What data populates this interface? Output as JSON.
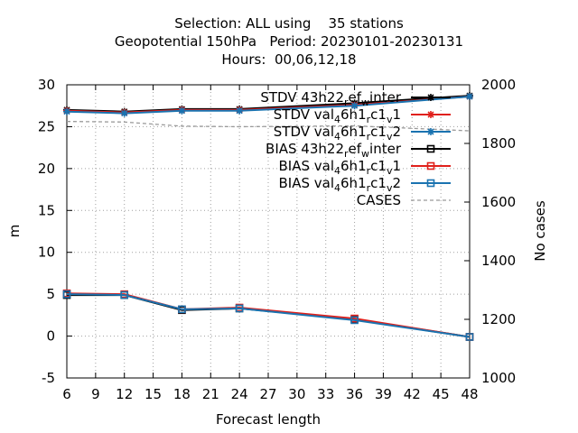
{
  "chart_data": {
    "type": "line",
    "title_lines": [
      "Selection: ALL using    35 stations",
      "Geopotential 150hPa   Period: 20230101-20230131",
      "Hours:  00,06,12,18"
    ],
    "xlabel": "Forecast length",
    "ylabel": "m",
    "y2label": "No cases",
    "xlim": [
      6,
      48
    ],
    "ylim": [
      -5,
      30
    ],
    "y2lim": [
      1000,
      2000
    ],
    "xticks": [
      6,
      9,
      12,
      15,
      18,
      21,
      24,
      27,
      30,
      33,
      36,
      39,
      42,
      45,
      48
    ],
    "yticks": [
      -5,
      0,
      5,
      10,
      15,
      20,
      25,
      30
    ],
    "y2ticks": [
      1000,
      1200,
      1400,
      1600,
      1800,
      2000
    ],
    "grid": true,
    "legend_position": "top-right",
    "x": [
      6,
      12,
      18,
      24,
      36,
      48
    ],
    "series": [
      {
        "name": "STDV 43h22_ref_winter",
        "legend_main": "STDV 43h22",
        "legend_parts": [
          [
            "r",
            "ef"
          ],
          [
            "w",
            "inter"
          ]
        ],
        "color": "#000000",
        "marker": "star",
        "axis": "y",
        "values": [
          27.0,
          26.8,
          27.1,
          27.1,
          27.8,
          28.7
        ]
      },
      {
        "name": "STDV val_46h1_rc1_v1",
        "legend_main": "STDV val",
        "legend_parts": [
          [
            "4",
            "6h1"
          ],
          [
            "r",
            "c1"
          ],
          [
            "v",
            "1"
          ]
        ],
        "color": "#e0201b",
        "marker": "star",
        "axis": "y",
        "values": [
          26.9,
          26.7,
          27.0,
          27.0,
          27.6,
          28.6
        ]
      },
      {
        "name": "STDV val_46h1_rc1_v2",
        "legend_main": "STDV val",
        "legend_parts": [
          [
            "4",
            "6h1"
          ],
          [
            "r",
            "c1"
          ],
          [
            "v",
            "2"
          ]
        ],
        "color": "#1a73b0",
        "marker": "star",
        "axis": "y",
        "values": [
          26.8,
          26.6,
          26.9,
          26.9,
          27.5,
          28.6
        ]
      },
      {
        "name": "BIAS 43h22_ref_winter",
        "legend_main": "BIAS 43h22",
        "legend_parts": [
          [
            "r",
            "ef"
          ],
          [
            "w",
            "inter"
          ]
        ],
        "color": "#000000",
        "marker": "square",
        "axis": "y",
        "values": [
          4.9,
          4.9,
          3.1,
          3.3,
          2.0,
          -0.1
        ]
      },
      {
        "name": "BIAS val_46h1_rc1_v1",
        "legend_main": "BIAS val",
        "legend_parts": [
          [
            "4",
            "6h1"
          ],
          [
            "r",
            "c1"
          ],
          [
            "v",
            "1"
          ]
        ],
        "color": "#e0201b",
        "marker": "square",
        "axis": "y",
        "values": [
          5.1,
          5.0,
          3.2,
          3.4,
          2.1,
          -0.1
        ]
      },
      {
        "name": "BIAS val_46h1_rc1_v2",
        "legend_main": "BIAS val",
        "legend_parts": [
          [
            "4",
            "6h1"
          ],
          [
            "r",
            "c1"
          ],
          [
            "v",
            "2"
          ]
        ],
        "color": "#1a73b0",
        "marker": "square",
        "axis": "y",
        "values": [
          5.0,
          4.9,
          3.2,
          3.3,
          1.9,
          -0.1
        ]
      },
      {
        "name": "CASES",
        "legend_main": "CASES",
        "legend_parts": [],
        "color": "#999999",
        "marker": "none",
        "dashed": true,
        "axis": "y2",
        "values": [
          1875,
          1873,
          1859,
          1857,
          1860,
          1843
        ]
      }
    ]
  }
}
